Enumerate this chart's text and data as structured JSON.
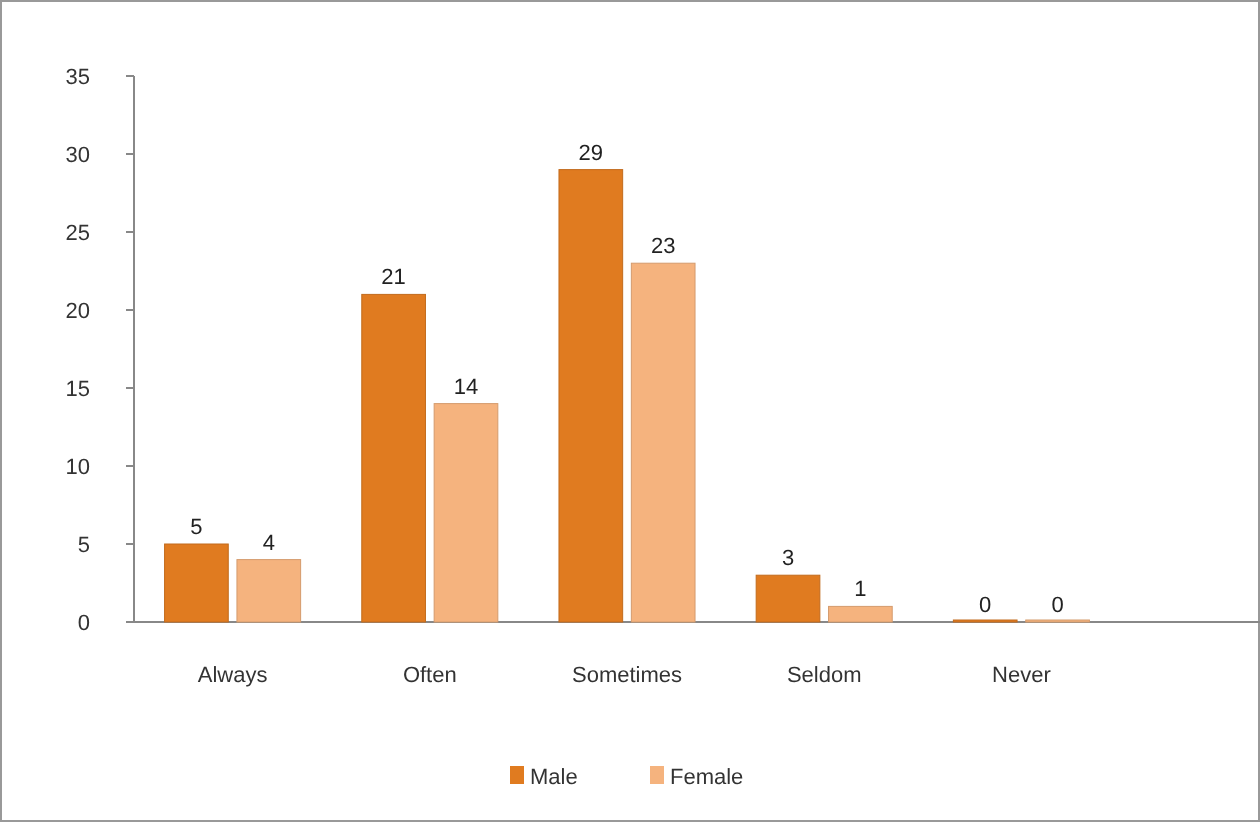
{
  "chart_data": {
    "type": "bar",
    "categories": [
      "Always",
      "Often",
      "Sometimes",
      "Seldom",
      "Never"
    ],
    "series": [
      {
        "name": "Male",
        "color": "#e07b20",
        "values": [
          5,
          21,
          29,
          3,
          0
        ]
      },
      {
        "name": "Female",
        "color": "#f5b37e",
        "values": [
          4,
          14,
          23,
          1,
          0
        ]
      }
    ],
    "ylim": [
      0,
      35
    ],
    "yticks": [
      0,
      5,
      10,
      15,
      20,
      25,
      30,
      35
    ],
    "grid": false,
    "legend": "bottom",
    "data_labels": true
  }
}
